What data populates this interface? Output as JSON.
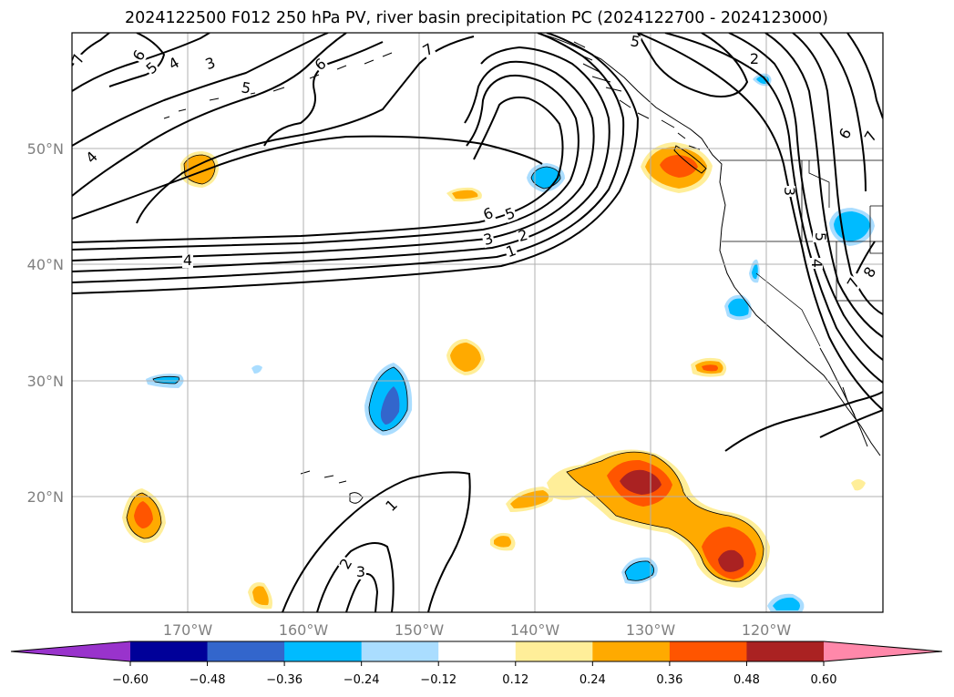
{
  "title": "2024122500 F012 250 hPa PV, river basin precipitation PC (2024122700 - 2024123000)",
  "map": {
    "lat_labels": [
      "50°N",
      "40°N",
      "30°N",
      "20°N"
    ],
    "lon_labels": [
      "170°W",
      "160°W",
      "150°W",
      "140°W",
      "130°W",
      "120°W"
    ],
    "contour_labels": [
      "7",
      "6",
      "5",
      "4",
      "3",
      "5",
      "6",
      "7",
      "5",
      "2",
      "4",
      "6",
      "5",
      "3",
      "2",
      "1",
      "4",
      "1",
      "2",
      "3",
      "6",
      "7",
      "3",
      "5",
      "4",
      "7",
      "8"
    ],
    "shading_colors": {
      "neg_060": "#9933cc",
      "neg_048": "#000099",
      "neg_036": "#3366cc",
      "neg_024": "#00bbff",
      "neg_012": "#aaddff",
      "pos_012": "#ffee99",
      "pos_024": "#ffaa00",
      "pos_036": "#ff5500",
      "pos_048": "#aa2222",
      "pos_060": "#ff88aa"
    }
  },
  "colorbar": {
    "labels": [
      "−0.60",
      "−0.48",
      "−0.36",
      "−0.24",
      "−0.12",
      "0.12",
      "0.24",
      "0.36",
      "0.48",
      "0.60"
    ],
    "colors": [
      "#9933cc",
      "#000099",
      "#3366cc",
      "#00bbff",
      "#aaddff",
      "#ffffff",
      "#ffee99",
      "#ffaa00",
      "#ff5500",
      "#aa2222",
      "#ff88aa"
    ]
  }
}
